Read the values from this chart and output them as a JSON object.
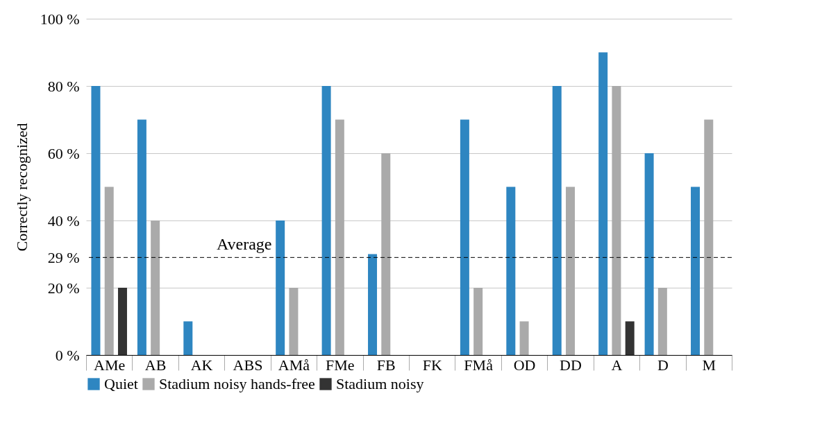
{
  "chart_data": {
    "type": "bar",
    "ylabel": "Correctly recognized",
    "categories": [
      "AMe",
      "AB",
      "AK",
      "ABS",
      "AMå",
      "FMe",
      "FB",
      "FK",
      "FMå",
      "OD",
      "DD",
      "A",
      "D",
      "M"
    ],
    "series": [
      {
        "name": "Quiet",
        "color": "#2e86c1",
        "values": [
          80,
          70,
          10,
          0,
          40,
          80,
          30,
          0,
          70,
          50,
          80,
          90,
          60,
          50
        ]
      },
      {
        "name": "Stadium noisy hands-free",
        "color": "#aaaaaa",
        "values": [
          50,
          40,
          0,
          0,
          20,
          70,
          60,
          0,
          20,
          10,
          50,
          80,
          20,
          70
        ]
      },
      {
        "name": "Stadium noisy",
        "color": "#333333",
        "values": [
          20,
          0,
          0,
          0,
          0,
          0,
          0,
          0,
          0,
          0,
          0,
          10,
          0,
          0
        ]
      }
    ],
    "ylim": [
      0,
      100
    ],
    "yticks": [
      {
        "value": 0,
        "label": "0 %"
      },
      {
        "value": 20,
        "label": "20 %"
      },
      {
        "value": 29,
        "label": "29 %"
      },
      {
        "value": 40,
        "label": "40 %"
      },
      {
        "value": 60,
        "label": "60 %"
      },
      {
        "value": 80,
        "label": "80 %"
      },
      {
        "value": 100,
        "label": "100 %"
      }
    ],
    "ref_lines": [
      {
        "axis": "y",
        "value": 29,
        "label": "Average",
        "line_style": "dashed",
        "color": "#000000"
      }
    ],
    "grid": "y",
    "legend": "bottom"
  }
}
